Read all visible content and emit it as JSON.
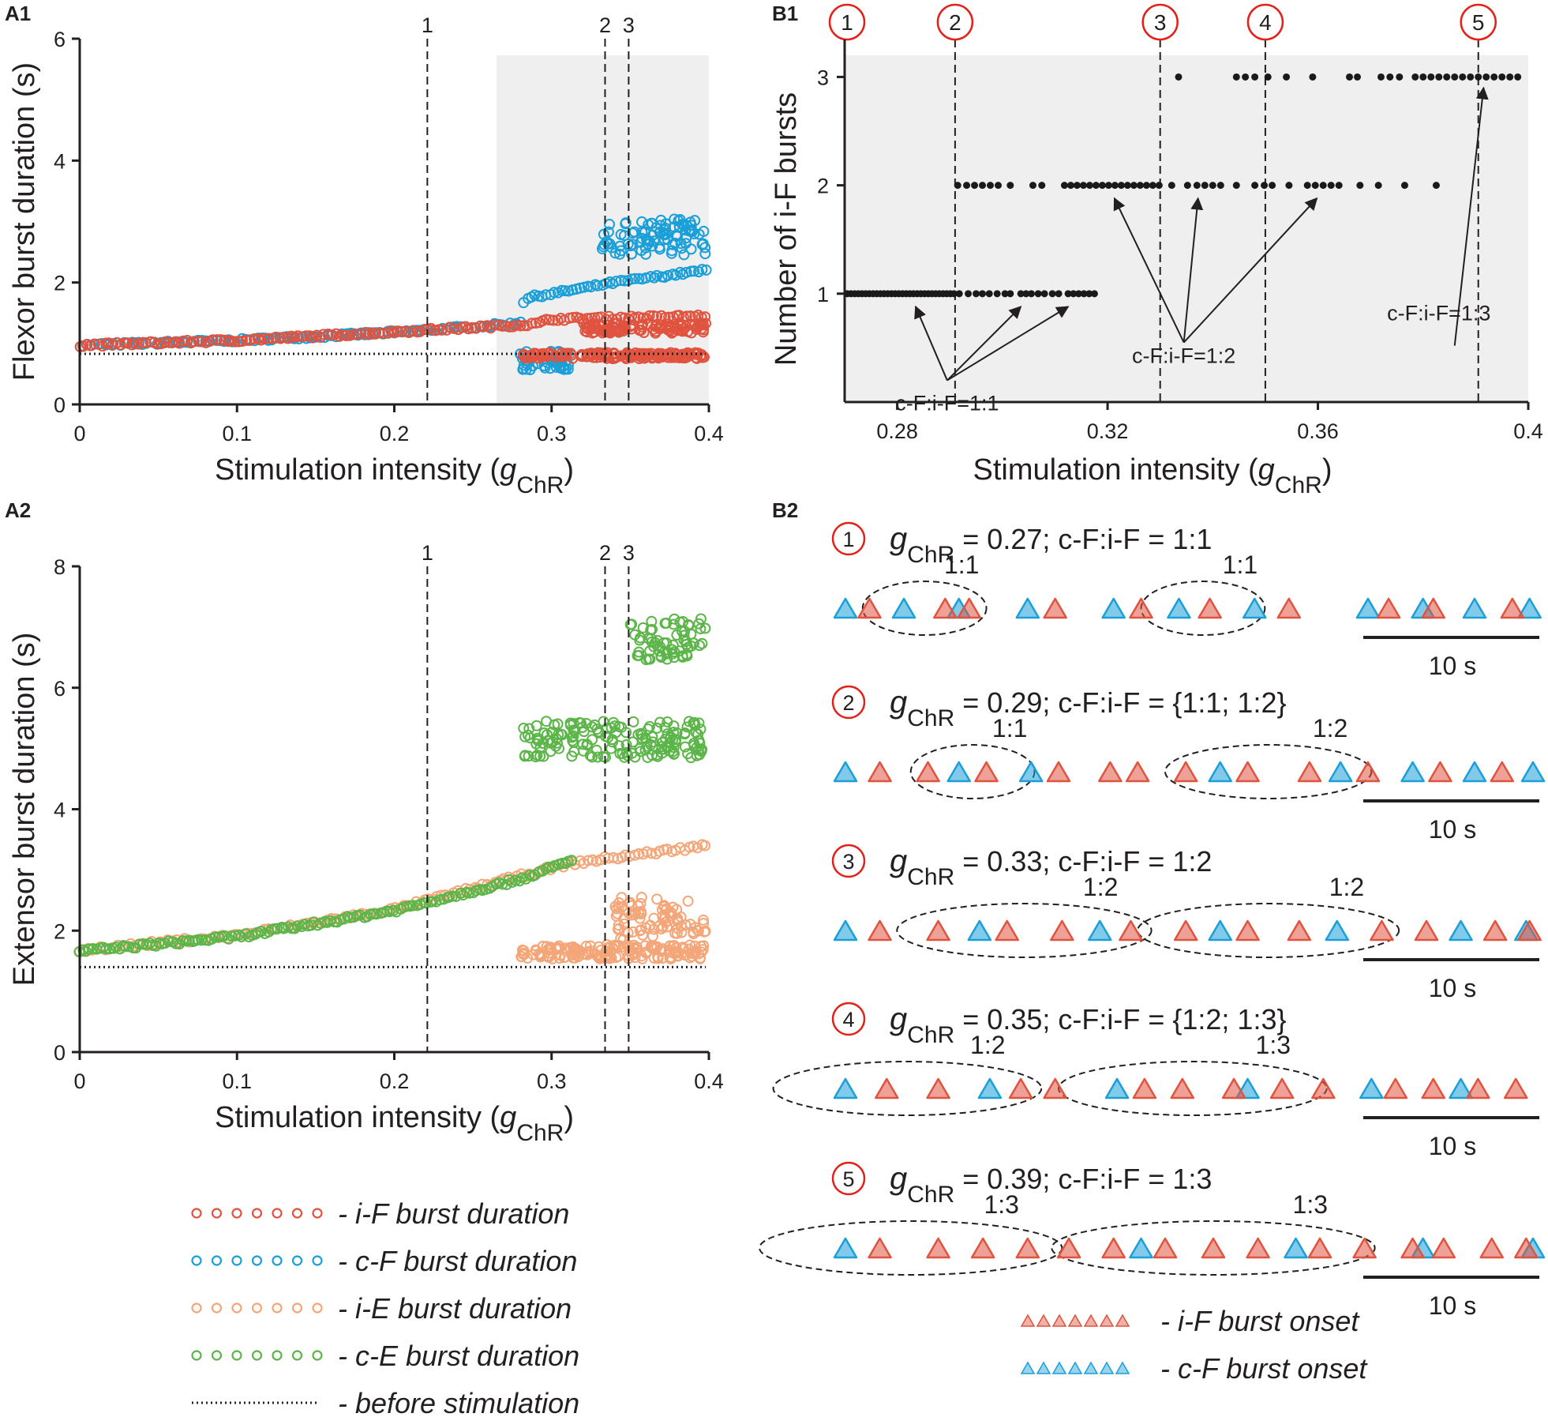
{
  "panels": {
    "a1": "A1",
    "a2": "A2",
    "b1": "B1",
    "b2": "B2"
  },
  "colors": {
    "iF": "#e0533f",
    "cF": "#1a9fd8",
    "iE": "#f5a679",
    "cE": "#5cb548",
    "axis": "#231f20",
    "shade": "#efefef"
  },
  "chart_data": [
    {
      "id": "A1",
      "type": "scatter",
      "title": "",
      "xlabel": "Stimulation intensity (gChR)",
      "xlabel_main": "Stimulation intensity (",
      "xlabel_var": "g",
      "xlabel_sub": "ChR",
      "xlabel_end": ")",
      "ylabel": "Flexor burst duration (s)",
      "xlim": [
        0,
        0.4
      ],
      "ylim": [
        0,
        6
      ],
      "xticks": [
        0,
        0.1,
        0.2,
        0.3,
        0.4
      ],
      "xtick_labels": [
        "0",
        "0.1",
        "0.2",
        "0.3",
        "0.4"
      ],
      "yticks": [
        0,
        2,
        4,
        6
      ],
      "ytick_labels": [
        "0",
        "2",
        "4",
        "6"
      ],
      "shaded_region": [
        0.265,
        0.4
      ],
      "baseline": 0.83,
      "vlines": [
        {
          "x": 0.221,
          "label": "1"
        },
        {
          "x": 0.334,
          "label": "2"
        },
        {
          "x": 0.349,
          "label": "3"
        }
      ],
      "series": [
        {
          "name": "c-F burst duration",
          "color": "cF",
          "trend": [
            [
              0,
              0.97
            ],
            [
              0.1,
              1.05
            ],
            [
              0.2,
              1.18
            ],
            [
              0.28,
              1.33
            ],
            [
              0.283,
              1.74
            ],
            [
              0.34,
              2.0
            ],
            [
              0.398,
              2.2
            ]
          ],
          "branches": [
            {
              "from": 0.28,
              "to": 0.312,
              "y": 0.72,
              "spread": 0.16
            },
            {
              "from": 0.33,
              "to": 0.398,
              "y": 2.75,
              "spread": 0.3
            }
          ]
        },
        {
          "name": "i-F burst duration",
          "color": "iF",
          "trend": [
            [
              0,
              0.97
            ],
            [
              0.1,
              1.05
            ],
            [
              0.2,
              1.19
            ],
            [
              0.29,
              1.32
            ],
            [
              0.3,
              1.4
            ],
            [
              0.398,
              1.45
            ]
          ],
          "branches": [
            {
              "from": 0.282,
              "to": 0.398,
              "y": 0.8,
              "spread": 0.05
            },
            {
              "from": 0.32,
              "to": 0.398,
              "y": 1.25,
              "spread": 0.08
            }
          ]
        }
      ]
    },
    {
      "id": "A2",
      "type": "scatter",
      "xlabel": "Stimulation intensity (gChR)",
      "xlabel_main": "Stimulation intensity (",
      "xlabel_var": "g",
      "xlabel_sub": "ChR",
      "xlabel_end": ")",
      "ylabel": "Extensor burst duration (s)",
      "xlim": [
        0,
        0.4
      ],
      "ylim": [
        0,
        8
      ],
      "xticks": [
        0,
        0.1,
        0.2,
        0.3,
        0.4
      ],
      "xtick_labels": [
        "0",
        "0.1",
        "0.2",
        "0.3",
        "0.4"
      ],
      "yticks": [
        0,
        2,
        4,
        6,
        8
      ],
      "ytick_labels": [
        "0",
        "2",
        "4",
        "6",
        "8"
      ],
      "baseline": 1.4,
      "vlines": [
        {
          "x": 0.221,
          "label": "1"
        },
        {
          "x": 0.334,
          "label": "2"
        },
        {
          "x": 0.349,
          "label": "3"
        }
      ],
      "series": [
        {
          "name": "i-E burst duration",
          "color": "iE",
          "trend": [
            [
              0,
              1.68
            ],
            [
              0.1,
              1.92
            ],
            [
              0.2,
              2.35
            ],
            [
              0.28,
              2.9
            ],
            [
              0.31,
              3.1
            ],
            [
              0.398,
              3.4
            ]
          ],
          "branches": [
            {
              "from": 0.28,
              "to": 0.398,
              "y": 1.65,
              "spread": 0.12
            },
            {
              "from": 0.34,
              "to": 0.398,
              "y": 2.2,
              "spread": 0.35
            }
          ]
        },
        {
          "name": "c-E burst duration",
          "color": "cE",
          "trend": [
            [
              0,
              1.66
            ],
            [
              0.1,
              1.9
            ],
            [
              0.2,
              2.33
            ],
            [
              0.28,
              2.85
            ],
            [
              0.313,
              3.15
            ]
          ],
          "branches": [
            {
              "from": 0.28,
              "to": 0.398,
              "y": 5.15,
              "spread": 0.3
            },
            {
              "from": 0.35,
              "to": 0.398,
              "y": 6.8,
              "spread": 0.35
            }
          ]
        }
      ]
    },
    {
      "id": "B1",
      "type": "scatter",
      "xlabel": "Stimulation intensity (gChR)",
      "xlabel_main": "Stimulation intensity (",
      "xlabel_var": "g",
      "xlabel_sub": "ChR",
      "xlabel_end": ")",
      "ylabel": "Number of i-F bursts",
      "xlim": [
        0.27,
        0.4
      ],
      "ylim": [
        0,
        3.2
      ],
      "xticks": [
        0.28,
        0.32,
        0.36,
        0.4
      ],
      "xtick_labels": [
        "0.28",
        "0.32",
        "0.36",
        "0.4"
      ],
      "yticks": [
        1,
        2,
        3
      ],
      "ytick_labels": [
        "1",
        "2",
        "3"
      ],
      "vlines": [
        {
          "x": 0.291,
          "label": "2"
        },
        {
          "x": 0.33,
          "label": "3"
        },
        {
          "x": 0.35,
          "label": "4"
        },
        {
          "x": 0.3905,
          "label": "5"
        }
      ],
      "circled_labels": [
        "1",
        "2",
        "3",
        "4",
        "5"
      ],
      "circled_x": [
        0.27,
        0.291,
        0.33,
        0.35,
        0.3905
      ],
      "points": [
        {
          "y": 1,
          "x": [
            0.2705,
            0.2712,
            0.2719,
            0.2726,
            0.2733,
            0.274,
            0.2747,
            0.2754,
            0.2761,
            0.2768,
            0.2775,
            0.2782,
            0.2789,
            0.2796,
            0.2803,
            0.281,
            0.2817,
            0.2824,
            0.2831,
            0.2838,
            0.2845,
            0.2852,
            0.2859,
            0.2866,
            0.2873,
            0.288,
            0.2887,
            0.2894,
            0.2901,
            0.2908,
            0.2918,
            0.2935,
            0.295,
            0.2962,
            0.2975,
            0.299,
            0.3005,
            0.3015,
            0.3035,
            0.3045,
            0.3055,
            0.3068,
            0.308,
            0.3095,
            0.3107,
            0.3125,
            0.3135,
            0.3145,
            0.3155,
            0.3165,
            0.3175
          ]
        },
        {
          "y": 2,
          "x": [
            0.2915,
            0.2932,
            0.2947,
            0.2962,
            0.2977,
            0.2992,
            0.3015,
            0.3058,
            0.3075,
            0.3118,
            0.313,
            0.3142,
            0.3154,
            0.3166,
            0.3178,
            0.319,
            0.3202,
            0.3214,
            0.3226,
            0.3238,
            0.325,
            0.3262,
            0.3274,
            0.3286,
            0.3298,
            0.3322,
            0.3352,
            0.337,
            0.3385,
            0.34,
            0.3415,
            0.3445,
            0.348,
            0.3498,
            0.3513,
            0.3545,
            0.358,
            0.3595,
            0.361,
            0.3625,
            0.364,
            0.368,
            0.3715,
            0.3765,
            0.3825
          ]
        },
        {
          "y": 3,
          "x": [
            0.3335,
            0.3445,
            0.3462,
            0.348,
            0.3505,
            0.354,
            0.359,
            0.366,
            0.3675,
            0.372,
            0.3737,
            0.3755,
            0.3785,
            0.38,
            0.3815,
            0.383,
            0.3845,
            0.386,
            0.3875,
            0.389,
            0.3905,
            0.392,
            0.3935,
            0.395,
            0.3965,
            0.398
          ]
        }
      ],
      "annotations": [
        {
          "text": "c-F:i-F=1:1",
          "anchor_x": 0.2895,
          "anchor_y": 0.2,
          "targets": [
            [
              0.2835,
              0.88
            ],
            [
              0.3035,
              0.88
            ],
            [
              0.3125,
              0.88
            ]
          ]
        },
        {
          "text": "c-F:i-F=1:2",
          "anchor_x": 0.3345,
          "anchor_y": 0.55,
          "targets": [
            [
              0.3213,
              1.88
            ],
            [
              0.3372,
              1.88
            ],
            [
              0.3598,
              1.88
            ]
          ]
        },
        {
          "text": "c-F:i-F=1:3",
          "anchor_x": 0.386,
          "anchor_y": 0.52,
          "targets": [
            [
              0.3915,
              2.9
            ]
          ]
        }
      ]
    },
    {
      "id": "B2",
      "type": "event-raster",
      "scale_label": "10 s",
      "rows": [
        {
          "circ": "1",
          "g_var": "g",
          "g_sub": "ChR",
          "text": " = 0.27;  c-F:i-F = 1:1",
          "blue": [
            0.0,
            0.085,
            0.165,
            0.265,
            0.39,
            0.485,
            0.595,
            0.76,
            0.84,
            0.915,
            0.995
          ],
          "red": [
            0.035,
            0.145,
            0.18,
            0.305,
            0.43,
            0.53,
            0.645,
            0.79,
            0.855,
            0.97
          ],
          "ellipses": [
            {
              "c": 0.115,
              "w": 0.09,
              "label": "1:1"
            },
            {
              "c": 0.52,
              "w": 0.09,
              "label": "1:1"
            }
          ]
        },
        {
          "circ": "2",
          "g_var": "g",
          "g_sub": "ChR",
          "text": " = 0.29;  c-F:i-F = {1:1; 1:2}",
          "blue": [
            0.0,
            0.165,
            0.27,
            0.545,
            0.72,
            0.825,
            0.915,
            1.0
          ],
          "red": [
            0.05,
            0.12,
            0.205,
            0.31,
            0.385,
            0.425,
            0.495,
            0.585,
            0.675,
            0.76,
            0.865,
            0.955
          ],
          "ellipses": [
            {
              "c": 0.185,
              "w": 0.09,
              "label": "1:1"
            },
            {
              "c": 0.615,
              "w": 0.15,
              "label": "1:2"
            }
          ]
        },
        {
          "circ": "3",
          "g_var": "g",
          "g_sub": "ChR",
          "text": " = 0.33;  c-F:i-F = 1:2",
          "blue": [
            0.0,
            0.195,
            0.37,
            0.545,
            0.715,
            0.895,
            0.99
          ],
          "red": [
            0.05,
            0.135,
            0.235,
            0.315,
            0.415,
            0.495,
            0.585,
            0.66,
            0.78,
            0.845,
            0.945,
            0.995
          ],
          "ellipses": [
            {
              "c": 0.26,
              "w": 0.185,
              "label": "1:2"
            },
            {
              "c": 0.615,
              "w": 0.19,
              "label": "1:2"
            }
          ]
        },
        {
          "circ": "4",
          "g_var": "g",
          "g_sub": "ChR",
          "text": " = 0.35;  c-F:i-F = {1:2; 1:3}",
          "blue": [
            0.0,
            0.21,
            0.395,
            0.585,
            0.765,
            0.895
          ],
          "red": [
            0.06,
            0.135,
            0.255,
            0.305,
            0.435,
            0.49,
            0.565,
            0.635,
            0.695,
            0.8,
            0.855,
            0.92,
            0.975
          ],
          "ellipses": [
            {
              "c": 0.09,
              "w": 0.195,
              "label": "1:2"
            },
            {
              "c": 0.505,
              "w": 0.195,
              "label": "1:3"
            }
          ]
        },
        {
          "circ": "5",
          "g_var": "g",
          "g_sub": "ChR",
          "text": " = 0.39;  c-F:i-F = 1:3",
          "blue": [
            0.0,
            0.43,
            0.655,
            0.84,
            1.0
          ],
          "red": [
            0.05,
            0.135,
            0.2,
            0.265,
            0.325,
            0.39,
            0.465,
            0.535,
            0.6,
            0.69,
            0.755,
            0.825,
            0.87,
            0.94,
            0.99
          ],
          "ellipses": [
            {
              "c": 0.095,
              "w": 0.22,
              "label": "1:3"
            },
            {
              "c": 0.535,
              "w": 0.235,
              "label": "1:3"
            }
          ]
        }
      ]
    }
  ],
  "legend_bursts": [
    {
      "color": "iF",
      "label": "- i-F burst duration"
    },
    {
      "color": "cF",
      "label": "- c-F burst duration"
    },
    {
      "color": "iE",
      "label": "- i-E burst duration"
    },
    {
      "color": "cE",
      "label": "- c-E burst duration"
    },
    {
      "color": "dotted",
      "label": "- before stimulation"
    }
  ],
  "legend_onsets": [
    {
      "color": "iF",
      "label": "- i-F burst onset"
    },
    {
      "color": "cF",
      "label": "- c-F burst onset"
    }
  ]
}
